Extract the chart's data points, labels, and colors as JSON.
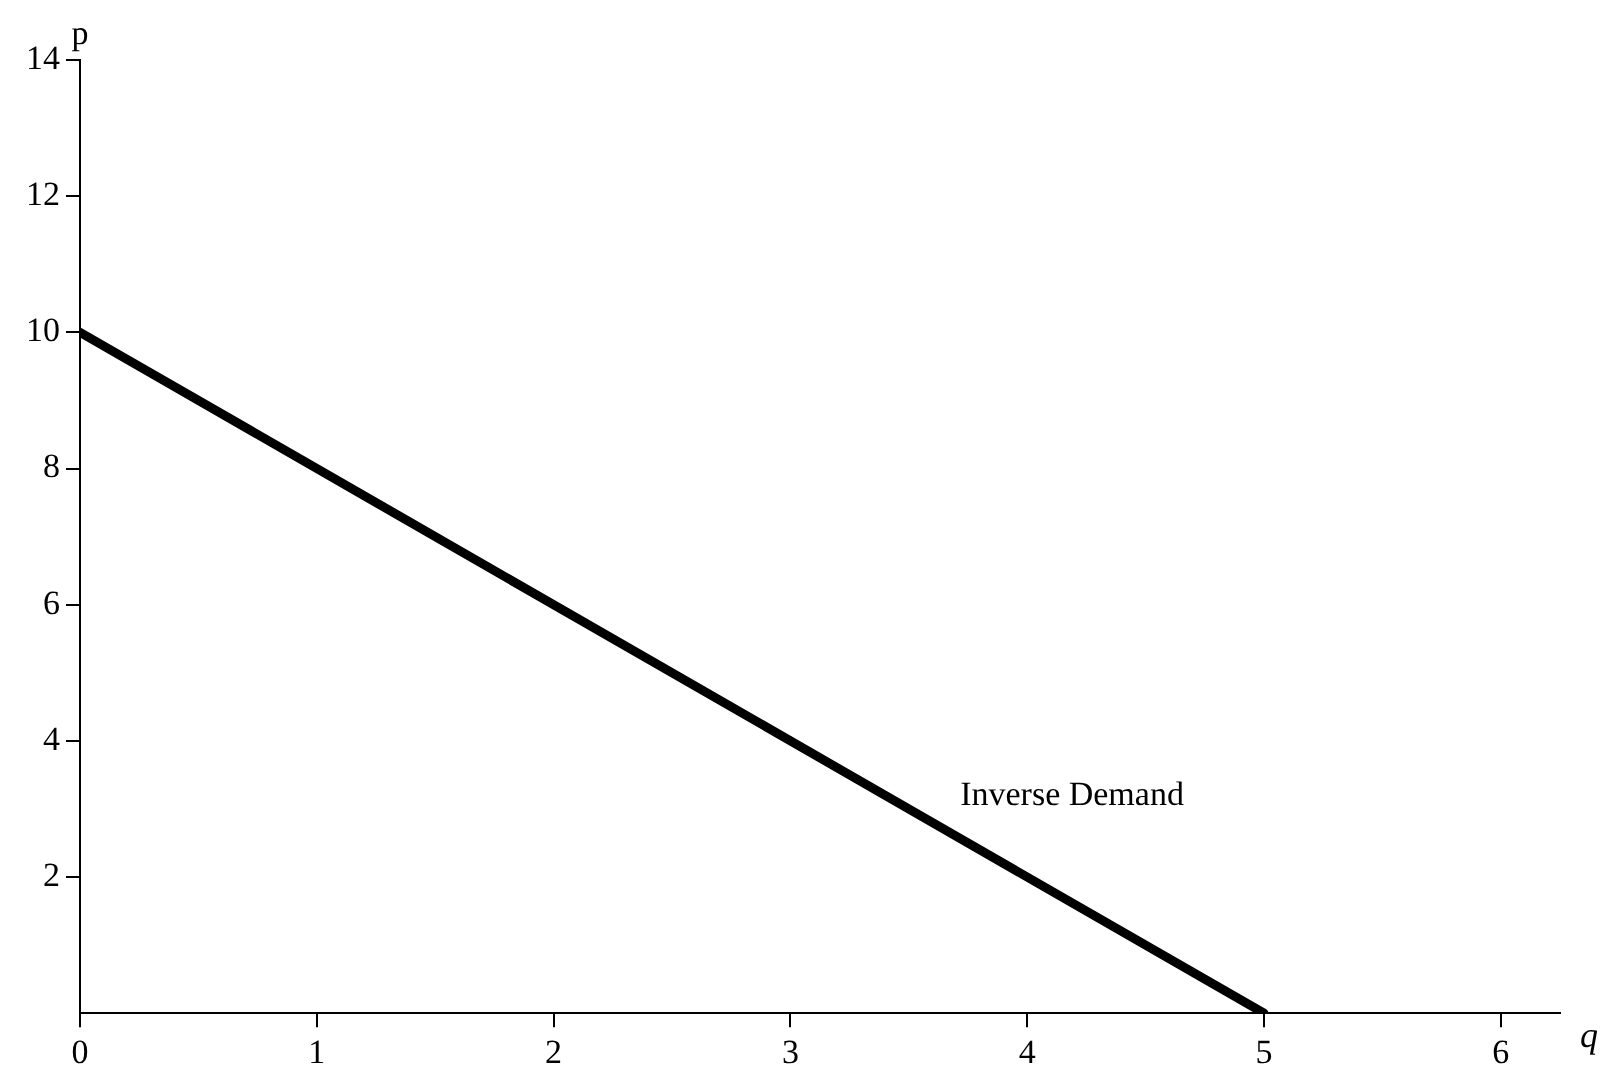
{
  "chart_data": {
    "type": "line",
    "xlabel": "q",
    "ylabel": "p",
    "x": [
      0,
      5
    ],
    "series": [
      {
        "name": "Inverse Demand",
        "color": "#000000",
        "values": [
          10,
          0
        ]
      }
    ],
    "xlim": [
      0,
      6.25
    ],
    "ylim": [
      0,
      14
    ],
    "xticks": [
      0,
      1,
      2,
      3,
      4,
      5,
      6
    ],
    "yticks": [
      2,
      4,
      6,
      8,
      10,
      12,
      14
    ],
    "grid": false,
    "legend": false,
    "marker": "none",
    "line_style": "solid"
  }
}
